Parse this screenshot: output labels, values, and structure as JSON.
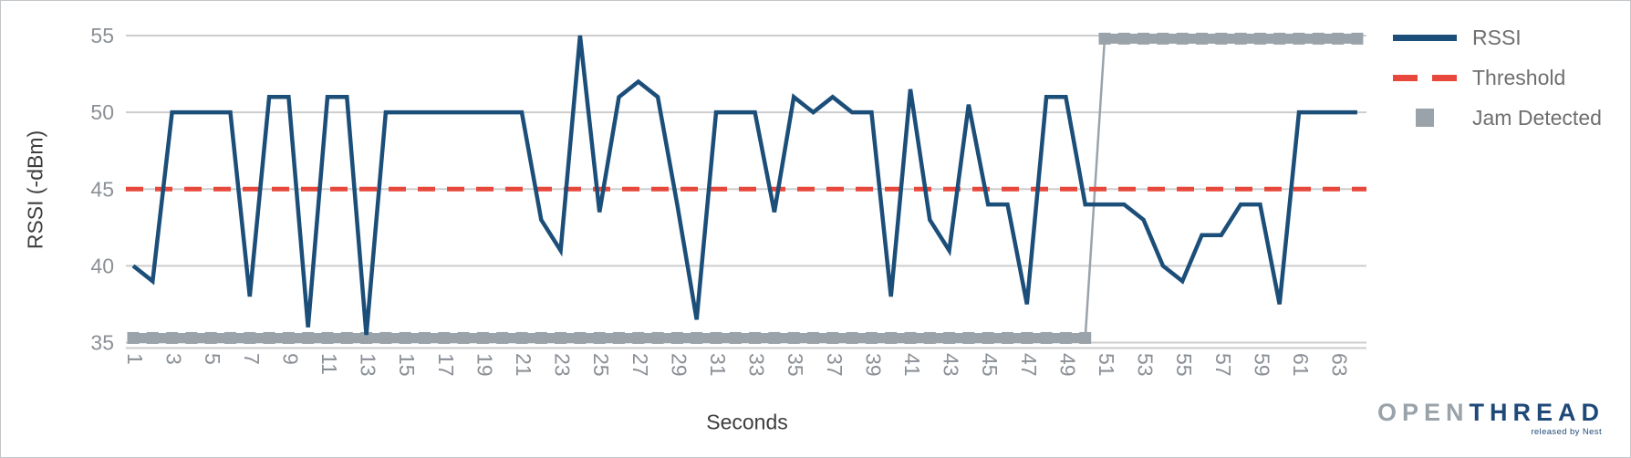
{
  "chart_data": {
    "type": "line",
    "title": "",
    "xlabel": "Seconds",
    "ylabel": "RSSI (-dBm)",
    "ylim": [
      35,
      55
    ],
    "yticks": [
      55,
      50,
      45,
      40,
      35
    ],
    "xticks": [
      1,
      3,
      5,
      7,
      9,
      11,
      13,
      15,
      17,
      19,
      21,
      23,
      25,
      27,
      29,
      31,
      33,
      35,
      37,
      39,
      41,
      43,
      45,
      47,
      49,
      51,
      53,
      55,
      57,
      59,
      61,
      63
    ],
    "x": [
      1,
      2,
      3,
      4,
      5,
      6,
      7,
      8,
      9,
      10,
      11,
      12,
      13,
      14,
      15,
      16,
      17,
      18,
      19,
      20,
      21,
      22,
      23,
      24,
      25,
      26,
      27,
      28,
      29,
      30,
      31,
      32,
      33,
      34,
      35,
      36,
      37,
      38,
      39,
      40,
      41,
      42,
      43,
      44,
      45,
      46,
      47,
      48,
      49,
      50,
      51,
      52,
      53,
      54,
      55,
      56,
      57,
      58,
      59,
      60,
      61,
      62,
      63,
      64
    ],
    "grid": "horizontal",
    "legend_position": "right",
    "series": [
      {
        "name": "RSSI",
        "type": "line",
        "color": "#1b4e79",
        "values": [
          40,
          39,
          50,
          50,
          50,
          50,
          38,
          51,
          51,
          36,
          51,
          51,
          35.5,
          50,
          50,
          50,
          50,
          50,
          50,
          50,
          50,
          43,
          41,
          55,
          43.5,
          51,
          52,
          51,
          44,
          36.5,
          50,
          50,
          50,
          43.5,
          51,
          50,
          51,
          50,
          50,
          38,
          51.5,
          43,
          41,
          50.5,
          44,
          44,
          37.5,
          51,
          51,
          44,
          44,
          44,
          43,
          40,
          39,
          42,
          42,
          44,
          44,
          37.5,
          50,
          50,
          50,
          50
        ]
      },
      {
        "name": "Threshold",
        "type": "dashed_line",
        "color": "#e8483b",
        "value": 45
      },
      {
        "name": "Jam Detected",
        "type": "marker_bar",
        "color": "#9aa3aa",
        "values": [
          0,
          0,
          0,
          0,
          0,
          0,
          0,
          0,
          0,
          0,
          0,
          0,
          0,
          0,
          0,
          0,
          0,
          0,
          0,
          0,
          0,
          0,
          0,
          0,
          0,
          0,
          0,
          0,
          0,
          0,
          0,
          0,
          0,
          0,
          0,
          0,
          0,
          0,
          0,
          0,
          0,
          0,
          0,
          0,
          0,
          0,
          0,
          0,
          0,
          0,
          1,
          1,
          1,
          1,
          1,
          1,
          1,
          1,
          1,
          1,
          1,
          1,
          1,
          1
        ],
        "false_level": 35.3,
        "true_level": 54.8
      }
    ]
  },
  "axes": {
    "x_title": "Seconds",
    "y_title": "RSSI (-dBm)"
  },
  "legend": {
    "items": [
      {
        "label": "RSSI"
      },
      {
        "label": "Threshold"
      },
      {
        "label": "Jam Detected"
      }
    ]
  },
  "logo": {
    "part1": "OPEN",
    "part2": "THREAD",
    "tagline": "released by Nest"
  }
}
